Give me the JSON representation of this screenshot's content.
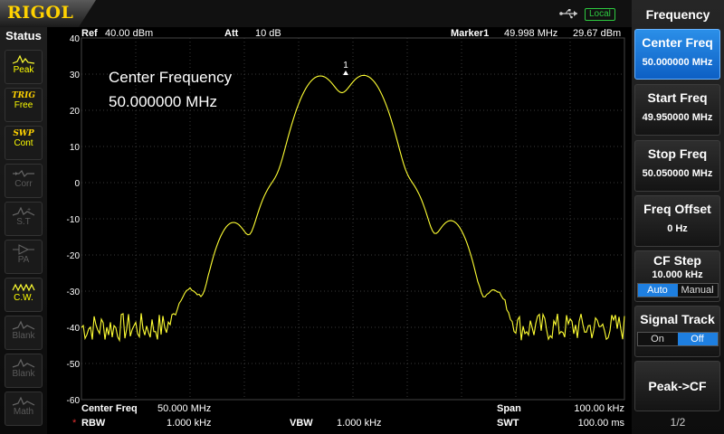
{
  "logo": "RIGOL",
  "header": {
    "local": "Local"
  },
  "status": {
    "title": "Status",
    "items": [
      {
        "name": "peak",
        "t1": "",
        "t2": "Peak",
        "on": true
      },
      {
        "name": "trig",
        "t1": "TRIG",
        "t2": "Free",
        "on": true
      },
      {
        "name": "swp",
        "t1": "SWP",
        "t2": "Cont",
        "on": true
      },
      {
        "name": "corr",
        "t1": "",
        "t2": "Corr",
        "on": false
      },
      {
        "name": "st",
        "t1": "",
        "t2": "S.T",
        "on": false
      },
      {
        "name": "pa",
        "t1": "",
        "t2": "PA",
        "on": false
      },
      {
        "name": "cw",
        "t1": "",
        "t2": "C.W.",
        "on": true
      },
      {
        "name": "blank1",
        "t1": "",
        "t2": "Blank",
        "on": false
      },
      {
        "name": "blank2",
        "t1": "",
        "t2": "Blank",
        "on": false
      },
      {
        "name": "math",
        "t1": "",
        "t2": "Math",
        "on": false
      }
    ]
  },
  "display": {
    "ref_label": "Ref",
    "ref_value": "40.00 dBm",
    "att_label": "Att",
    "att_value": "10 dB",
    "marker_label": "Marker1",
    "marker_freq": "49.998 MHz",
    "marker_amp": "29.67 dBm",
    "overlay_line1": "Center Frequency",
    "overlay_line2": "50.000000 MHz",
    "marker_num": "1",
    "yticks": [
      "40",
      "30",
      "20",
      "10",
      "0",
      "-10",
      "-20",
      "-30",
      "-40",
      "-50",
      "-60"
    ],
    "ylim": [
      -60,
      40
    ],
    "center_label": "Center Freq",
    "center_value": "50.000 MHz",
    "span_label": "Span",
    "span_value": "100.00 kHz",
    "rbw_star": "*",
    "rbw_label": "RBW",
    "rbw_value": "1.000 kHz",
    "vbw_label": "VBW",
    "vbw_value": "1.000 kHz",
    "swt_label": "SWT",
    "swt_value": "100.00 ms"
  },
  "colors": {
    "trace": "#ffff33",
    "grid": "#3a3a3a",
    "active": "#1e7fe0",
    "accent": "#ffd200"
  },
  "menu": {
    "title": "Frequency",
    "center_freq": {
      "label": "Center Freq",
      "value": "50.000000 MHz"
    },
    "start_freq": {
      "label": "Start Freq",
      "value": "49.950000 MHz"
    },
    "stop_freq": {
      "label": "Stop Freq",
      "value": "50.050000 MHz"
    },
    "freq_offset": {
      "label": "Freq Offset",
      "value": "0 Hz"
    },
    "cf_step": {
      "label": "CF Step",
      "value": "10.000 kHz",
      "auto": "Auto",
      "manual": "Manual"
    },
    "signal_track": {
      "label": "Signal Track",
      "on": "On",
      "off": "Off"
    },
    "peak_cf": "Peak->CF",
    "page": "1/2"
  }
}
